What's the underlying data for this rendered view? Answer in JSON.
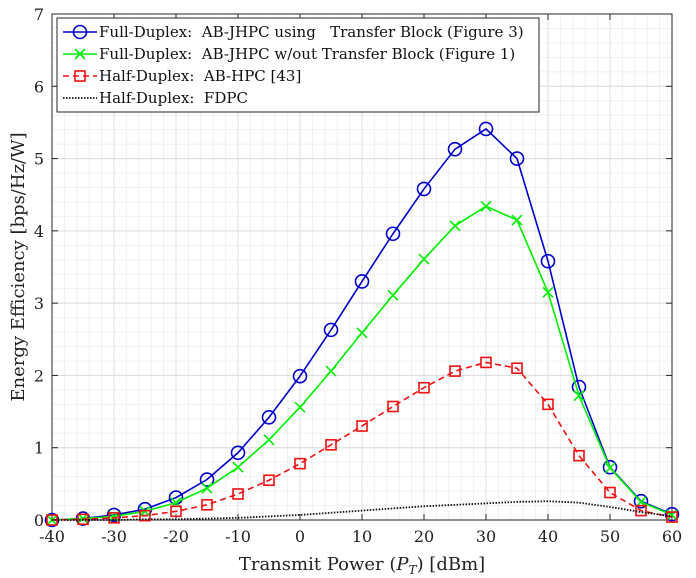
{
  "chart_data": {
    "type": "line",
    "title": "",
    "xlabel": "Transmit Power ($P_T$) [dBm]",
    "xlabel_parts": [
      "Transmit Power (",
      "P",
      "T",
      ") [dBm]"
    ],
    "ylabel": "Energy Efficiency [bps/Hz/W]",
    "xlim": [
      -40,
      60
    ],
    "ylim": [
      0,
      7
    ],
    "xticks": [
      -40,
      -30,
      -20,
      -10,
      0,
      10,
      20,
      30,
      40,
      50,
      60
    ],
    "yticks": [
      0,
      1,
      2,
      3,
      4,
      5,
      6,
      7
    ],
    "grid": true,
    "minor_grid": true,
    "legend_position": "top-left",
    "x": [
      -40,
      -35,
      -30,
      -25,
      -20,
      -15,
      -10,
      -5,
      0,
      5,
      10,
      15,
      20,
      25,
      30,
      35,
      40,
      45,
      50,
      55,
      60
    ],
    "series": [
      {
        "name": "Full-Duplex:  AB-JHPC using   Transfer Block (Figure 3)",
        "color": "#0000cc",
        "marker": "circle",
        "dash": "solid",
        "values": [
          0.0,
          0.02,
          0.07,
          0.15,
          0.31,
          0.56,
          0.93,
          1.42,
          1.99,
          2.63,
          3.3,
          3.96,
          4.58,
          5.13,
          5.41,
          5.0,
          3.58,
          1.84,
          0.73,
          0.26,
          0.08
        ]
      },
      {
        "name": "Full-Duplex:  AB-JHPC w/out Transfer Block (Figure 1)",
        "color": "#00ee00",
        "marker": "x",
        "dash": "solid",
        "values": [
          0.0,
          0.02,
          0.05,
          0.12,
          0.24,
          0.44,
          0.73,
          1.11,
          1.56,
          2.06,
          2.59,
          3.11,
          3.61,
          4.07,
          4.34,
          4.15,
          3.15,
          1.72,
          0.72,
          0.25,
          0.07
        ]
      },
      {
        "name": "Half-Duplex:  AB-HPC [43]",
        "color": "#ee1111",
        "marker": "square",
        "dash": "dashed",
        "values": [
          0.0,
          0.01,
          0.03,
          0.06,
          0.12,
          0.21,
          0.36,
          0.55,
          0.78,
          1.04,
          1.3,
          1.57,
          1.83,
          2.06,
          2.18,
          2.1,
          1.6,
          0.89,
          0.38,
          0.13,
          0.04
        ]
      },
      {
        "name": "Half-Duplex:  FDPC",
        "color": "#111111",
        "marker": "none",
        "dash": "dotted",
        "values": [
          0.0,
          0.0,
          0.0,
          0.01,
          0.01,
          0.02,
          0.03,
          0.05,
          0.07,
          0.1,
          0.13,
          0.16,
          0.19,
          0.21,
          0.23,
          0.25,
          0.26,
          0.24,
          0.18,
          0.11,
          0.05
        ]
      }
    ]
  }
}
